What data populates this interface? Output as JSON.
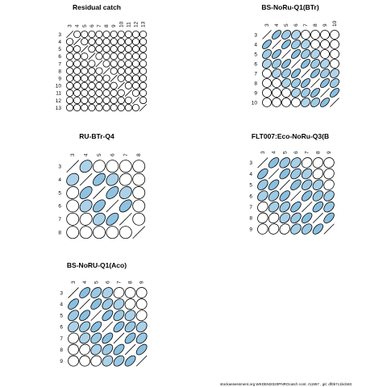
{
  "colors": {
    "fill": "#89bfdf",
    "stroke": "#000000",
    "background": "#ffffff"
  },
  "footer": "stockassessment.org  WKDEM2020PNROcatch  cont. r11957 , git: df0b7c1bcb83",
  "chart_data": [
    {
      "type": "correlation-ellipse-matrix",
      "title": "Residual catch",
      "labels": [
        "3",
        "4",
        "5",
        "6",
        "7",
        "8",
        "9",
        "10",
        "11",
        "12",
        "13"
      ],
      "cells": [
        [
          1,
          0,
          0,
          0,
          0,
          0,
          0,
          0,
          0,
          0,
          0
        ],
        [
          0,
          1,
          0,
          0,
          0,
          0,
          0,
          0,
          0,
          0,
          0
        ],
        [
          0,
          0,
          1,
          0,
          0,
          0,
          0,
          0,
          0,
          0,
          0
        ],
        [
          0,
          0,
          0,
          1,
          0,
          0,
          0,
          0,
          0,
          0,
          0
        ],
        [
          0,
          0,
          0,
          0,
          1,
          0,
          0,
          0,
          0,
          0,
          0
        ],
        [
          0,
          0,
          0,
          0,
          0,
          1,
          0,
          0,
          0,
          0,
          0
        ],
        [
          0,
          0,
          0,
          0,
          0,
          0,
          1,
          0,
          0,
          0,
          0
        ],
        [
          0,
          0,
          0,
          0,
          0,
          0,
          0,
          1,
          0,
          0,
          0
        ],
        [
          0,
          0,
          0,
          0,
          0,
          0,
          0,
          0,
          1,
          0,
          0
        ],
        [
          0,
          0,
          0,
          0,
          0,
          0,
          0,
          0,
          0,
          1,
          0
        ],
        [
          0,
          0,
          0,
          0,
          0,
          0,
          0,
          0,
          0,
          0,
          1
        ]
      ]
    },
    {
      "type": "correlation-ellipse-matrix",
      "title": "BS-NoRu-Q1(BTr)",
      "labels": [
        "3",
        "4",
        "5",
        "6",
        "7",
        "8",
        "9",
        "10"
      ],
      "cells": [
        [
          1,
          0.6,
          0.36,
          0.22,
          0,
          0,
          0,
          0
        ],
        [
          0.6,
          1,
          0.6,
          0.36,
          0.22,
          0,
          0,
          0
        ],
        [
          0.36,
          0.6,
          1,
          0.6,
          0.36,
          0.22,
          0,
          0
        ],
        [
          0.22,
          0.36,
          0.6,
          1,
          0.6,
          0.36,
          0.22,
          0
        ],
        [
          0,
          0.22,
          0.36,
          0.6,
          1,
          0.6,
          0.36,
          0.22
        ],
        [
          0,
          0,
          0.22,
          0.36,
          0.6,
          1,
          0.6,
          0.36
        ],
        [
          0,
          0,
          0,
          0.22,
          0.36,
          0.6,
          1,
          0.6
        ],
        [
          0,
          0,
          0,
          0,
          0.22,
          0.36,
          0.6,
          1
        ]
      ]
    },
    {
      "type": "correlation-ellipse-matrix",
      "title": "RU-BTr-Q4",
      "labels": [
        "3",
        "4",
        "5",
        "6",
        "7",
        "8"
      ],
      "cells": [
        [
          1,
          0.25,
          0.1,
          0,
          0,
          0
        ],
        [
          0.25,
          1,
          0.5,
          0.25,
          0.1,
          0
        ],
        [
          0.1,
          0.5,
          1,
          0.5,
          0.25,
          0
        ],
        [
          0,
          0.25,
          0.5,
          1,
          0.5,
          0
        ],
        [
          0,
          0.1,
          0.25,
          0.5,
          1,
          0
        ],
        [
          0,
          0,
          0,
          0,
          0,
          1
        ]
      ]
    },
    {
      "type": "correlation-ellipse-matrix",
      "title": "FLT007:Eco-NoRu-Q3(B",
      "labels": [
        "3",
        "4",
        "5",
        "6",
        "7",
        "8",
        "9"
      ],
      "cells": [
        [
          1,
          0.55,
          0.4,
          0.3,
          0.15,
          0.1,
          0.05
        ],
        [
          0.55,
          1,
          0.55,
          0.4,
          0.3,
          0.15,
          0.1
        ],
        [
          0.4,
          0.55,
          1,
          0.55,
          0.4,
          0.3,
          0.15
        ],
        [
          0.3,
          0.4,
          0.55,
          1,
          0.55,
          0.4,
          0.3
        ],
        [
          0.15,
          0.3,
          0.4,
          0.55,
          1,
          0.55,
          0.4
        ],
        [
          0.1,
          0.15,
          0.3,
          0.4,
          0.55,
          1,
          0.55
        ],
        [
          0.05,
          0.1,
          0.15,
          0.3,
          0.4,
          0.55,
          1
        ]
      ]
    },
    {
      "type": "correlation-ellipse-matrix",
      "title": "BS-NoRU-Q1(Aco)",
      "labels": [
        "3",
        "4",
        "5",
        "6",
        "7",
        "8",
        "9"
      ],
      "cells": [
        [
          1,
          0.55,
          0.4,
          0.25,
          0.1,
          0,
          0
        ],
        [
          0.55,
          1,
          0.55,
          0.4,
          0.25,
          0.1,
          0
        ],
        [
          0.4,
          0.55,
          1,
          0.55,
          0.4,
          0.25,
          0.1
        ],
        [
          0.25,
          0.4,
          0.55,
          1,
          0.55,
          0.4,
          0.25
        ],
        [
          0.1,
          0.25,
          0.4,
          0.55,
          1,
          0.55,
          0.4
        ],
        [
          0,
          0.1,
          0.25,
          0.4,
          0.55,
          1,
          0.55
        ],
        [
          0,
          0,
          0.1,
          0.25,
          0.4,
          0.55,
          1
        ]
      ]
    }
  ]
}
